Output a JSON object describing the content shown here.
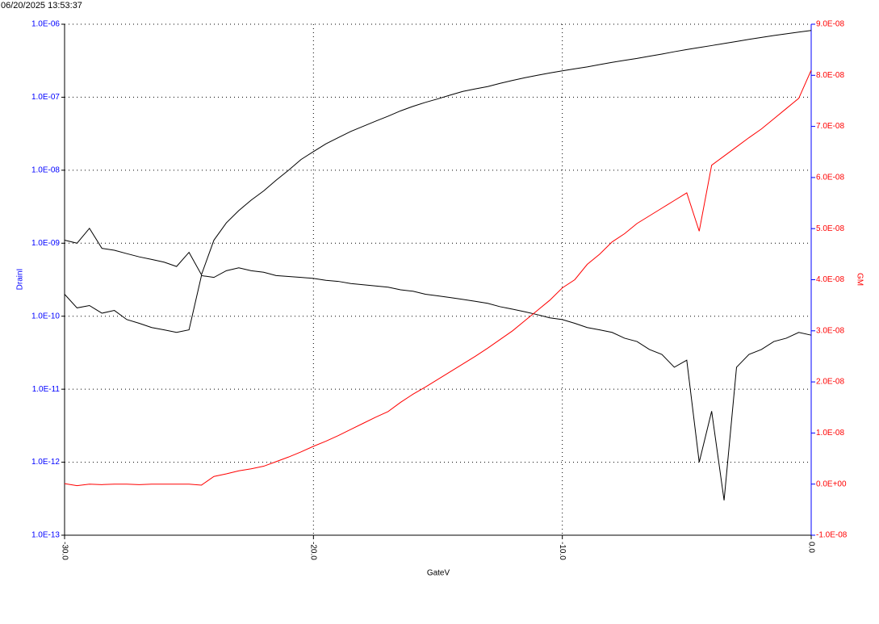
{
  "chart_data": {
    "type": "line",
    "timestamp": "06/20/2025 13:53:37",
    "x_label": "GateV",
    "y_label": "DrainI",
    "y2_label": "GM",
    "ylog": true,
    "grid": true,
    "x": [
      -30,
      -29.5,
      -29,
      -28.5,
      -28,
      -27.5,
      -27,
      -26.5,
      -26,
      -25.5,
      -25,
      -24.5,
      -24,
      -23.5,
      -23,
      -22.5,
      -22,
      -21.5,
      -21,
      -20.5,
      -20,
      -19.5,
      -19,
      -18.5,
      -18,
      -17.5,
      -17,
      -16.5,
      -16,
      -15.5,
      -15,
      -14.5,
      -14,
      -13.5,
      -13,
      -12.5,
      -12,
      -11.5,
      -11,
      -10.5,
      -10,
      -9.5,
      -9,
      -8.5,
      -8,
      -7.5,
      -7,
      -6.5,
      -6,
      -5.5,
      -5,
      -4.5,
      -4,
      -3.5,
      -3,
      -2.5,
      -2,
      -1.5,
      -1,
      -0.5,
      0
    ],
    "xlim": [
      -30,
      0
    ],
    "xticks": [
      {
        "value": -30,
        "label": "-30.0"
      },
      {
        "value": -20,
        "label": "-20.0"
      },
      {
        "value": -10,
        "label": "-10.0"
      },
      {
        "value": 0,
        "label": "0.0"
      }
    ],
    "ylim": [
      1e-13,
      1e-06
    ],
    "yticks": [
      {
        "value": 1e-13,
        "label": "1.0E-13"
      },
      {
        "value": 1e-12,
        "label": "1.0E-12"
      },
      {
        "value": 1e-11,
        "label": "1.0E-11"
      },
      {
        "value": 1e-10,
        "label": "1.0E-10"
      },
      {
        "value": 1e-09,
        "label": "1.0E-09"
      },
      {
        "value": 1e-08,
        "label": "1.0E-08"
      },
      {
        "value": 1e-07,
        "label": "1.0E-07"
      },
      {
        "value": 1e-06,
        "label": "1.0E-06"
      }
    ],
    "y2lim": [
      -1e-08,
      9e-08
    ],
    "y2ticks": [
      {
        "value": -1e-08,
        "label": "-1.0E-08"
      },
      {
        "value": 0,
        "label": "0.0E+00"
      },
      {
        "value": 1e-08,
        "label": "1.0E-08"
      },
      {
        "value": 2e-08,
        "label": "2.0E-08"
      },
      {
        "value": 3e-08,
        "label": "3.0E-08"
      },
      {
        "value": 4e-08,
        "label": "4.0E-08"
      },
      {
        "value": 5e-08,
        "label": "5.0E-08"
      },
      {
        "value": 6e-08,
        "label": "6.0E-08"
      },
      {
        "value": 7e-08,
        "label": "7.0E-08"
      },
      {
        "value": 8e-08,
        "label": "8.0E-08"
      },
      {
        "value": 9e-08,
        "label": "9.0E-08"
      }
    ],
    "y_color": "#0000ff",
    "y2_color": "#ff0000",
    "series": [
      {
        "color": "#000000",
        "values": [
          1.1e-09,
          1e-09,
          1.6e-09,
          8.5e-10,
          8e-10,
          7.2e-10,
          6.5e-10,
          6e-10,
          5.5e-10,
          4.8e-10,
          7.5e-10,
          3.7e-10,
          1.1e-09,
          1.9e-09,
          2.8e-09,
          3.9e-09,
          5.2e-09,
          7.3e-09,
          1e-08,
          1.4e-08,
          1.8e-08,
          2.3e-08,
          2.8e-08,
          3.4e-08,
          4e-08,
          4.7e-08,
          5.5e-08,
          6.5e-08,
          7.5e-08,
          8.5e-08,
          9.5e-08,
          1.07e-07,
          1.2e-07,
          1.3e-07,
          1.4e-07,
          1.55e-07,
          1.7e-07,
          1.85e-07,
          2e-07,
          2.15e-07,
          2.3e-07,
          2.45e-07,
          2.6e-07,
          2.8e-07,
          3e-07,
          3.2e-07,
          3.4e-07,
          3.65e-07,
          3.9e-07,
          4.2e-07,
          4.5e-07,
          4.8e-07,
          5.1e-07,
          5.45e-07,
          5.8e-07,
          6.2e-07,
          6.6e-07,
          7e-07,
          7.4e-07,
          7.8e-07,
          8.2e-07
        ]
      },
      {
        "color": "#000000",
        "values": [
          2e-10,
          1.3e-10,
          1.4e-10,
          1.1e-10,
          1.2e-10,
          9e-11,
          8e-11,
          7e-11,
          6.5e-11,
          6e-11,
          6.5e-11,
          3.6e-10,
          3.4e-10,
          4.2e-10,
          4.6e-10,
          4.2e-10,
          4e-10,
          3.6e-10,
          3.5e-10,
          3.4e-10,
          3.3e-10,
          3.1e-10,
          3e-10,
          2.8e-10,
          2.7e-10,
          2.6e-10,
          2.5e-10,
          2.3e-10,
          2.2e-10,
          2e-10,
          1.9e-10,
          1.8e-10,
          1.7e-10,
          1.6e-10,
          1.5e-10,
          1.35e-10,
          1.25e-10,
          1.15e-10,
          1.05e-10,
          9.5e-11,
          9e-11,
          8e-11,
          7e-11,
          6.5e-11,
          6e-11,
          5e-11,
          4.5e-11,
          3.5e-11,
          3e-11,
          2e-11,
          2.5e-11,
          1e-12,
          5e-12,
          3e-13,
          2e-11,
          3e-11,
          3.5e-11,
          4.5e-11,
          5e-11,
          6e-11,
          5.5e-11
        ]
      },
      {
        "color": "#ff0000",
        "axis": "y2",
        "values": [
          1e-10,
          -3e-10,
          0,
          -1e-10,
          0,
          0,
          -1e-10,
          0,
          0,
          0,
          0,
          -2e-10,
          1.5e-09,
          2e-09,
          2.6e-09,
          3e-09,
          3.5e-09,
          4.4e-09,
          5.3e-09,
          6.3e-09,
          7.4e-09,
          8.4e-09,
          9.5e-09,
          1.07e-08,
          1.19e-08,
          1.31e-08,
          1.42e-08,
          1.6e-08,
          1.76e-08,
          1.9e-08,
          2.05e-08,
          2.2e-08,
          2.35e-08,
          2.5e-08,
          2.66e-08,
          2.83e-08,
          3e-08,
          3.2e-08,
          3.4e-08,
          3.6e-08,
          3.84e-08,
          4e-08,
          4.3e-08,
          4.5e-08,
          4.74e-08,
          4.9e-08,
          5.1e-08,
          5.25e-08,
          5.4e-08,
          5.55e-08,
          5.7e-08,
          4.95e-08,
          6.24e-08,
          6.42e-08,
          6.6e-08,
          6.78e-08,
          6.95e-08,
          7.15e-08,
          7.35e-08,
          7.55e-08,
          8.1e-08
        ]
      }
    ]
  }
}
